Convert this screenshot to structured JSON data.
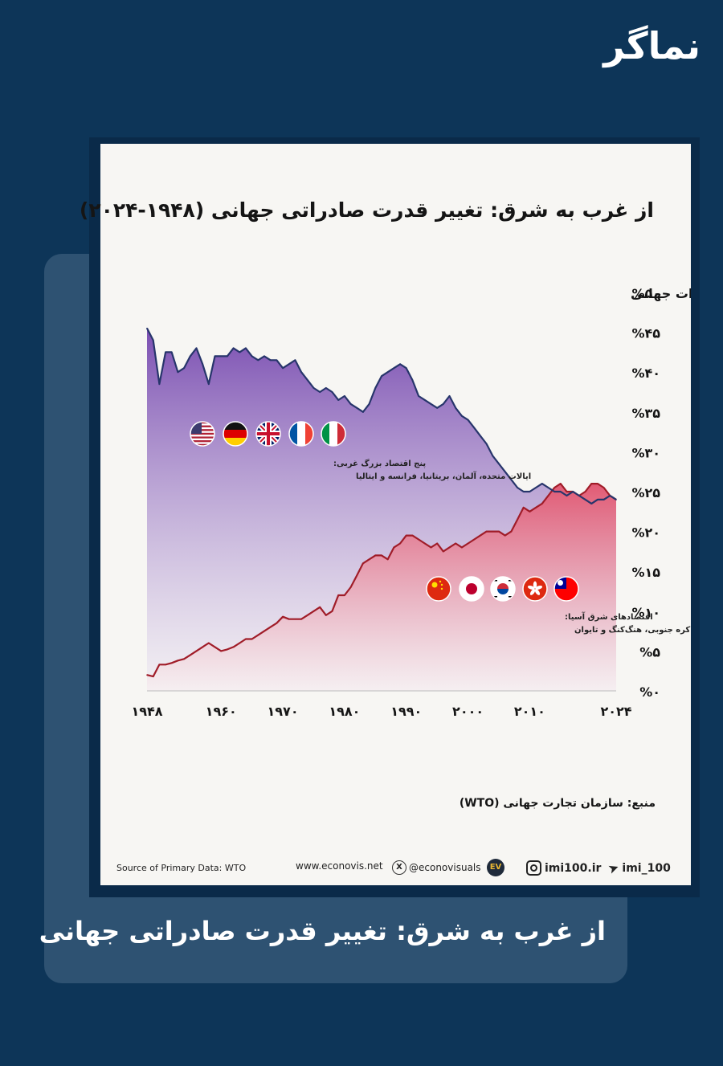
{
  "brand": {
    "logo_text": "نماگر"
  },
  "caption": "از غرب به شرق: تغییر قدرت صادراتی جهانی",
  "source_fa": "منبع: سازمان تجارت جهانی (WTO)",
  "footer": {
    "source_en": "Source of Primary Data: WTO",
    "website": "www.econovis.net",
    "x_handle": "@econovisuals",
    "ev_logo": "EV",
    "instagram": "imi100.ir",
    "telegram": "imi_100",
    "icons": {
      "x": "x-logo-icon",
      "ev": "econovis-logo-icon",
      "instagram": "instagram-icon",
      "telegram": "telegram-icon"
    }
  },
  "chart_data": {
    "type": "area",
    "title": "از غرب به شرق: تغییر قدرت صادراتی جهانی (۱۹۴۸-۲۰۲۴)",
    "ylabel": "% سهم صادرات جهانی",
    "ylim": [
      0,
      50
    ],
    "xlim": [
      1948,
      2024
    ],
    "y_ticks": [
      {
        "value": 0,
        "label": "%۰"
      },
      {
        "value": 5,
        "label": "%۵"
      },
      {
        "value": 10,
        "label": "%۱۰"
      },
      {
        "value": 15,
        "label": "%۱۵"
      },
      {
        "value": 20,
        "label": "%۲۰"
      },
      {
        "value": 25,
        "label": "%۲۵"
      },
      {
        "value": 30,
        "label": "%۳۰"
      },
      {
        "value": 35,
        "label": "%۳۵"
      },
      {
        "value": 40,
        "label": "%۴۰"
      },
      {
        "value": 45,
        "label": "%۴۵"
      },
      {
        "value": 50,
        "label": "%۵۰"
      }
    ],
    "x_ticks": [
      {
        "value": 1948,
        "label": "۱۹۴۸"
      },
      {
        "value": 1960,
        "label": "۱۹۶۰"
      },
      {
        "value": 1970,
        "label": "۱۹۷۰"
      },
      {
        "value": 1980,
        "label": "۱۹۸۰"
      },
      {
        "value": 1990,
        "label": "۱۹۹۰"
      },
      {
        "value": 2000,
        "label": "۲۰۰۰"
      },
      {
        "value": 2010,
        "label": "۲۰۱۰"
      },
      {
        "value": 2024,
        "label": "۲۰۲۴"
      }
    ],
    "grid": false,
    "colors": {
      "west_line": "#27356b",
      "west_fill_top": "#7b4fb2",
      "west_fill_bottom": "#f0ecf3",
      "east_line": "#a01c28",
      "east_fill_top": "#e15a74",
      "east_fill_bottom": "#f7eef0"
    },
    "series": [
      {
        "key": "west",
        "name_line1": "پنج اقتصاد بزرگ غربی:",
        "name_line2": "ایالات متحده، آلمان، بریتانیا، فرانسه و ایتالیا",
        "flags": [
          "us-flag-icon",
          "germany-flag-icon",
          "uk-flag-icon",
          "france-flag-icon",
          "italy-flag-icon"
        ],
        "x": [
          1948,
          1949,
          1950,
          1951,
          1952,
          1953,
          1954,
          1955,
          1956,
          1957,
          1958,
          1959,
          1960,
          1961,
          1962,
          1963,
          1964,
          1965,
          1966,
          1967,
          1968,
          1969,
          1970,
          1971,
          1972,
          1973,
          1974,
          1975,
          1976,
          1977,
          1978,
          1979,
          1980,
          1981,
          1982,
          1983,
          1984,
          1985,
          1986,
          1987,
          1988,
          1989,
          1990,
          1991,
          1992,
          1993,
          1994,
          1995,
          1996,
          1997,
          1998,
          1999,
          2000,
          2001,
          2002,
          2003,
          2004,
          2005,
          2006,
          2007,
          2008,
          2009,
          2010,
          2011,
          2012,
          2013,
          2014,
          2015,
          2016,
          2017,
          2018,
          2019,
          2020,
          2021,
          2022,
          2023,
          2024
        ],
        "values": [
          45.5,
          44.0,
          38.5,
          42.5,
          42.5,
          40.0,
          40.5,
          42.0,
          43.0,
          41.0,
          38.5,
          42.0,
          42.0,
          42.0,
          43.0,
          42.5,
          43.0,
          42.0,
          41.5,
          42.0,
          41.5,
          41.5,
          40.5,
          41.0,
          41.5,
          40.0,
          39.0,
          38.0,
          37.5,
          38.0,
          37.5,
          36.5,
          37.0,
          36.0,
          35.5,
          35.0,
          36.0,
          38.0,
          39.5,
          40.0,
          40.5,
          41.0,
          40.5,
          39.0,
          37.0,
          36.5,
          36.0,
          35.5,
          36.0,
          37.0,
          35.5,
          34.5,
          34.0,
          33.0,
          32.0,
          31.0,
          29.5,
          28.5,
          27.5,
          26.5,
          25.5,
          25.0,
          25.0,
          25.5,
          26.0,
          25.5,
          25.0,
          25.0,
          24.5,
          25.0,
          24.5,
          24.0,
          23.5,
          24.0,
          24.0,
          24.5,
          24.0
        ]
      },
      {
        "key": "east",
        "name_line1": "اقتصادهای شرق آسیا:",
        "name_line2": "چین، ژاپن، کره جنوبی، هنگ‌کنگ و تایوان",
        "flags": [
          "china-flag-icon",
          "japan-flag-icon",
          "south-korea-flag-icon",
          "hong-kong-flag-icon",
          "taiwan-flag-icon"
        ],
        "x": [
          1948,
          1949,
          1950,
          1951,
          1952,
          1953,
          1954,
          1955,
          1956,
          1957,
          1958,
          1959,
          1960,
          1961,
          1962,
          1963,
          1964,
          1965,
          1966,
          1967,
          1968,
          1969,
          1970,
          1971,
          1972,
          1973,
          1974,
          1975,
          1976,
          1977,
          1978,
          1979,
          1980,
          1981,
          1982,
          1983,
          1984,
          1985,
          1986,
          1987,
          1988,
          1989,
          1990,
          1991,
          1992,
          1993,
          1994,
          1995,
          1996,
          1997,
          1998,
          1999,
          2000,
          2001,
          2002,
          2003,
          2004,
          2005,
          2006,
          2007,
          2008,
          2009,
          2010,
          2011,
          2012,
          2013,
          2014,
          2015,
          2016,
          2017,
          2018,
          2019,
          2020,
          2021,
          2022,
          2023,
          2024
        ],
        "values": [
          2.0,
          1.8,
          3.3,
          3.3,
          3.5,
          3.8,
          4.0,
          4.5,
          5.0,
          5.5,
          6.0,
          5.5,
          5.0,
          5.2,
          5.5,
          6.0,
          6.5,
          6.5,
          7.0,
          7.5,
          8.0,
          8.5,
          9.3,
          9.0,
          9.0,
          9.0,
          9.5,
          10.0,
          10.5,
          9.5,
          10.0,
          12.0,
          12.0,
          13.0,
          14.5,
          16.0,
          16.5,
          17.0,
          17.0,
          16.5,
          18.0,
          18.5,
          19.5,
          19.5,
          19.0,
          18.5,
          18.0,
          18.5,
          17.5,
          18.0,
          18.5,
          18.0,
          18.5,
          19.0,
          19.5,
          20.0,
          20.0,
          20.0,
          19.5,
          20.0,
          21.5,
          23.0,
          22.5,
          23.0,
          23.5,
          24.5,
          25.5,
          26.0,
          25.0,
          25.0,
          24.5,
          25.0,
          26.0,
          26.0,
          25.5,
          24.5,
          24.0
        ]
      }
    ]
  }
}
